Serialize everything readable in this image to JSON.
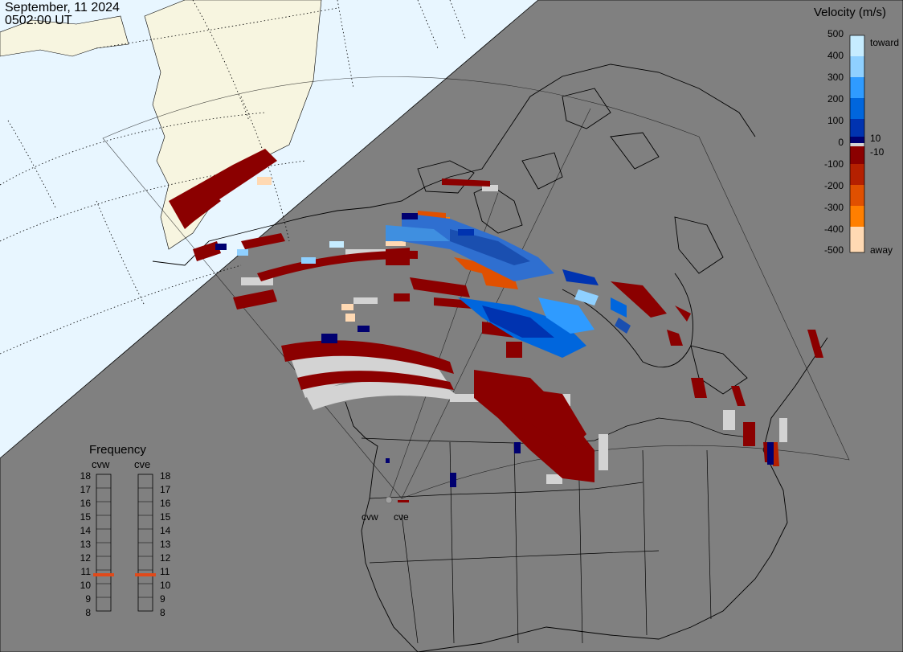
{
  "header": {
    "date": "September, 11 2024",
    "time": "0502:00 UT"
  },
  "legend": {
    "title": "Velocity (m/s)",
    "ticks": [
      "500",
      "400",
      "300",
      "200",
      "100",
      "0",
      "-100",
      "-200",
      "-300",
      "-400",
      "-500"
    ],
    "small_pos": "10",
    "small_neg": "-10",
    "toward_label": "toward",
    "away_label": "away",
    "colors": [
      "#ffd9b3",
      "#ffa040",
      "#ff7f00",
      "#e05000",
      "#b52000",
      "#8b0000",
      "#000070",
      "#0033b0",
      "#0066dd",
      "#2f9bff",
      "#8fd0ff",
      "#c6ecff"
    ],
    "ground_scatter_color": "#d3d3d3"
  },
  "frequency": {
    "title": "Frequency",
    "radars": [
      "cvw",
      "cve"
    ],
    "scale": [
      "18",
      "17",
      "16",
      "15",
      "14",
      "13",
      "12",
      "11",
      "10",
      "9",
      "8"
    ],
    "current_mhz": {
      "cvw": 11,
      "cve": 11
    },
    "marker_color": "#e04a1a"
  },
  "radar_labels": [
    "cvw",
    "cve"
  ],
  "map_colors": {
    "land": "#808080",
    "night_ocean": "#808080",
    "day_ocean": "#e8f6ff",
    "day_land": "#f7f5e0",
    "terminator": "#000000"
  }
}
